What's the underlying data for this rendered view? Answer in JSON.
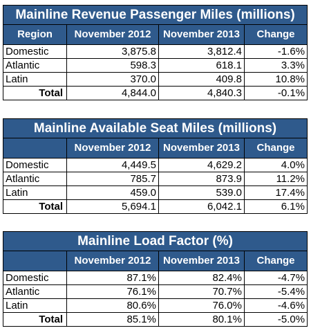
{
  "rpm": {
    "title": "Mainline Revenue Passenger Miles (millions)",
    "headers": [
      "Region",
      "November 2012",
      "November 2013",
      "Change"
    ],
    "rows": [
      {
        "label": "Domestic",
        "v2012": "3,875.8",
        "v2013": "3,812.4",
        "change": "-1.6%"
      },
      {
        "label": "Atlantic",
        "v2012": "598.3",
        "v2013": "618.1",
        "change": "3.3%"
      },
      {
        "label": "Latin",
        "v2012": "370.0",
        "v2013": "409.8",
        "change": "10.8%"
      }
    ],
    "total": {
      "label": "Total",
      "v2012": "4,844.0",
      "v2013": "4,840.3",
      "change": "-0.1%"
    }
  },
  "asm": {
    "title": "Mainline Available Seat Miles (millions)",
    "headers": [
      "",
      "November 2012",
      "November 2013",
      "Change"
    ],
    "rows": [
      {
        "label": "Domestic",
        "v2012": "4,449.5",
        "v2013": "4,629.2",
        "change": "4.0%"
      },
      {
        "label": "Atlantic",
        "v2012": "785.7",
        "v2013": "873.9",
        "change": "11.2%"
      },
      {
        "label": "Latin",
        "v2012": "459.0",
        "v2013": "539.0",
        "change": "17.4%"
      }
    ],
    "total": {
      "label": "Total",
      "v2012": "5,694.1",
      "v2013": "6,042.1",
      "change": "6.1%"
    }
  },
  "lf": {
    "title": "Mainline Load Factor (%)",
    "headers": [
      "",
      "November 2012",
      "November 2013",
      "Change"
    ],
    "rows": [
      {
        "label": "Domestic",
        "v2012": "87.1%",
        "v2013": "82.4%",
        "change": "-4.7%"
      },
      {
        "label": "Atlantic",
        "v2012": "76.1%",
        "v2013": "70.7%",
        "change": "-5.4%"
      },
      {
        "label": "Latin",
        "v2012": "80.6%",
        "v2013": "76.0%",
        "change": "-4.6%"
      }
    ],
    "total": {
      "label": "Total",
      "v2012": "85.1%",
      "v2013": "80.1%",
      "change": "-5.0%"
    }
  },
  "colors": {
    "header_bg": "#2f5a8c",
    "header_text": "#ffffff",
    "border": "#000000"
  }
}
